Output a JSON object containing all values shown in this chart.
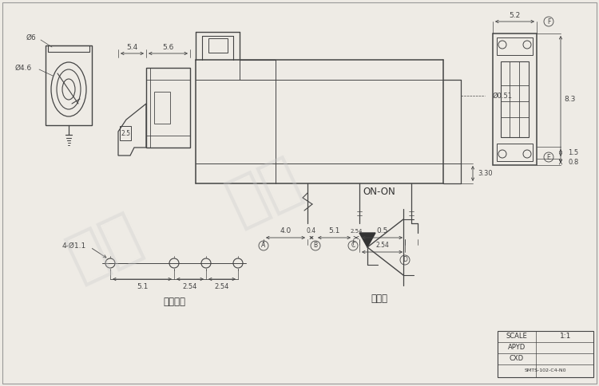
{
  "bg_color": "#eeebe5",
  "line_color": "#444444",
  "dim_color": "#444444",
  "text_color": "#333333",
  "watermark_color": "#cccccc",
  "scale_text": "SCALE",
  "scale_value": "1:1",
  "apyd": "APYD",
  "cxd": "CXD",
  "install_label": "安装尺寸",
  "circuit_label": "电路图",
  "on_on": "ON-ON",
  "watermark_lines": [
    "温州",
    "奥建"
  ],
  "dim_54": "5.4",
  "dim_56": "5.6",
  "dim_51_top": "5.1",
  "dim_04": "0.4",
  "dim_254c": "2.54",
  "dim_254d": "2.54",
  "dim_05": "0.5",
  "dim_40": "4.0",
  "dim_51_bot": "5.1",
  "dim_251": "2.54",
  "dim_252": "2.54",
  "dim_330": "3.30",
  "dim_051": "Ø0.51",
  "dim_52": "5.2",
  "dim_83": "8.3",
  "dim_08": "0.8",
  "dim_15": "1.5",
  "dim_06": "Ø6",
  "dim_046": "Ø4.6",
  "dim_25": "2.5",
  "dim_411": "4-Ø1.1",
  "label_A": "A",
  "label_B": "B",
  "label_C": "C",
  "label_D": "D",
  "label_E": "E",
  "label_F": "F"
}
